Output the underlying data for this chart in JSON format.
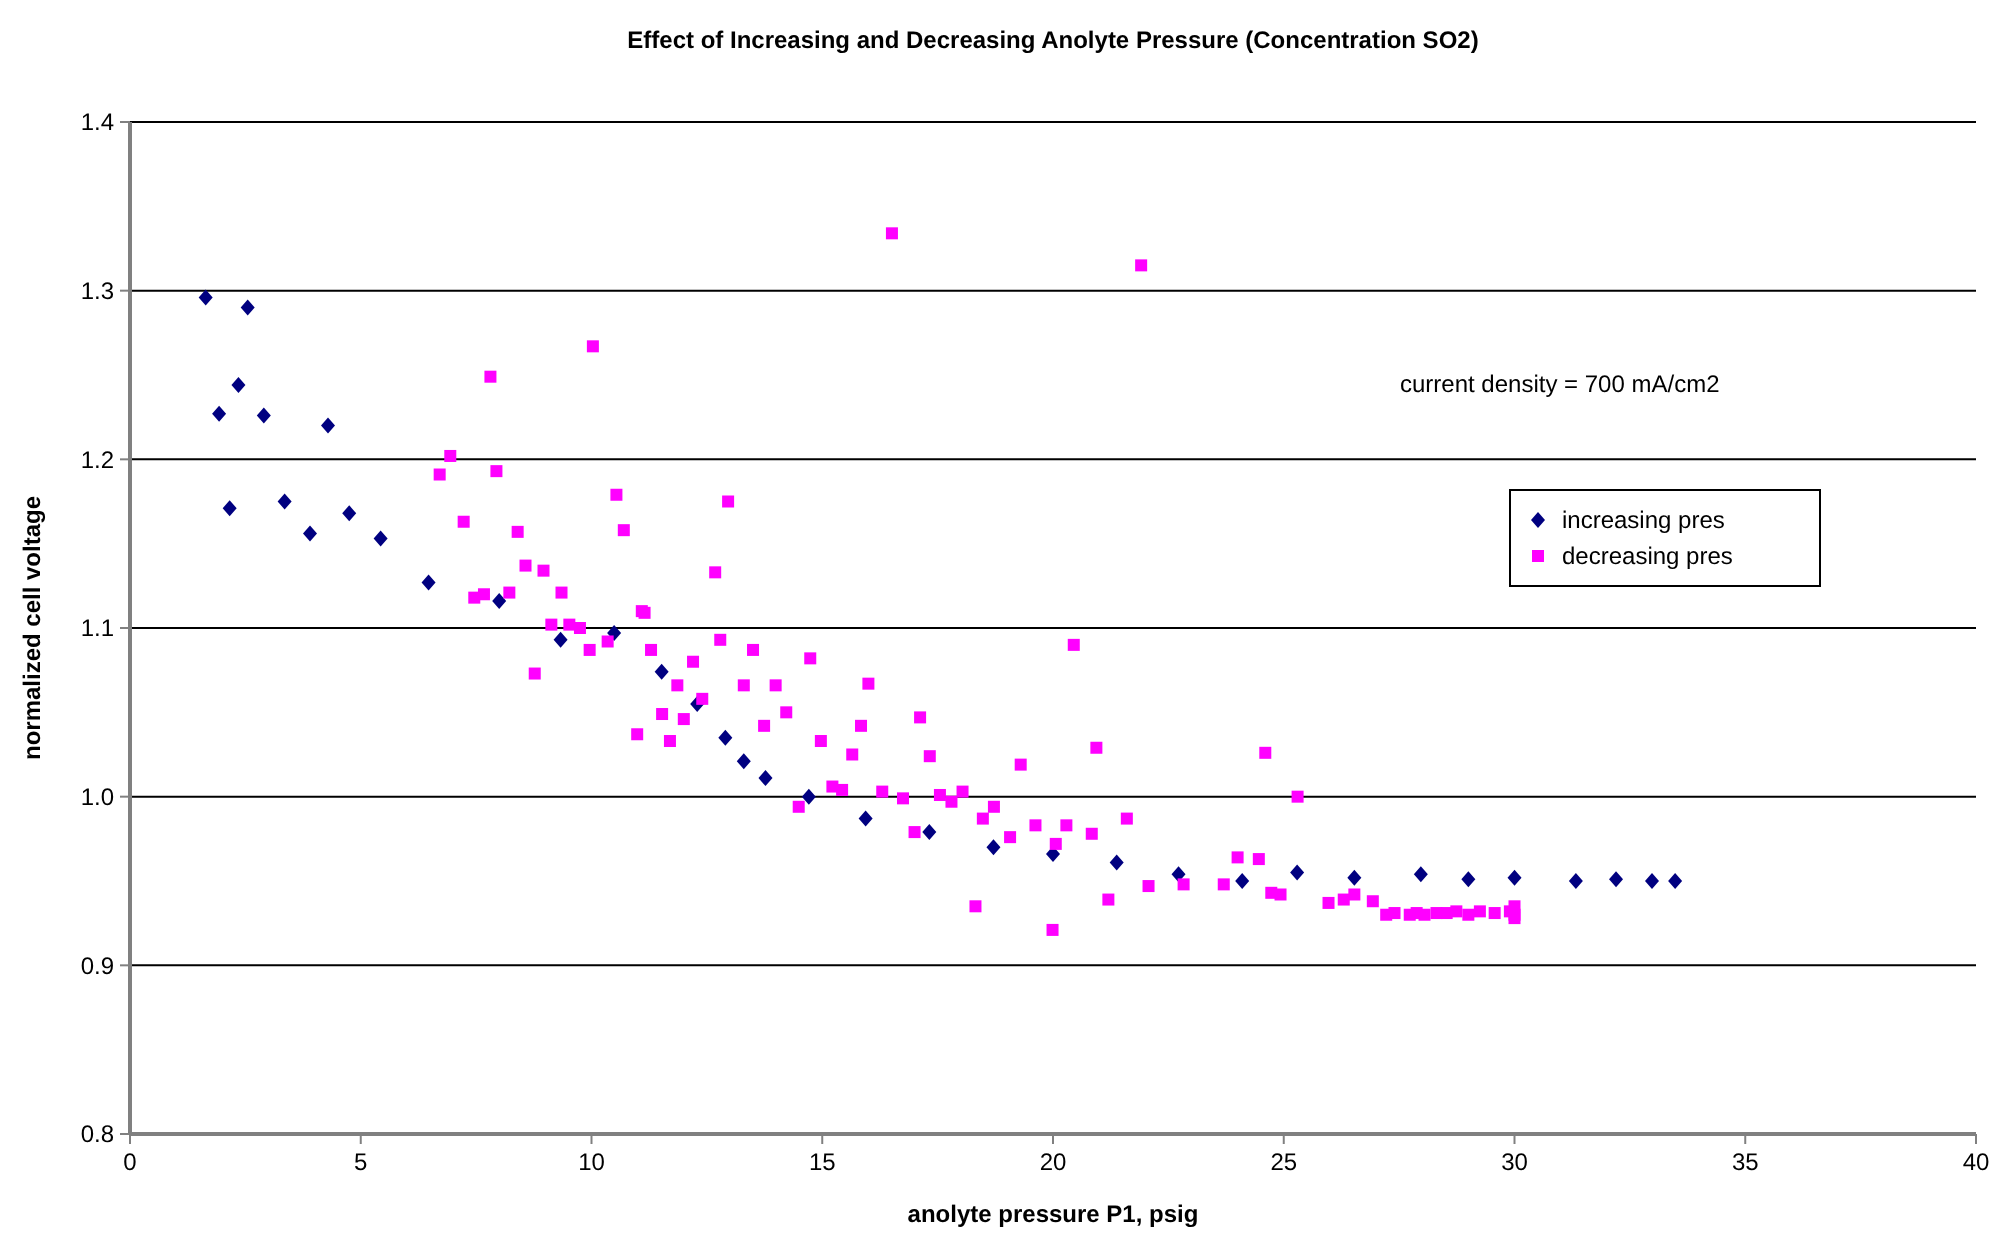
{
  "chart_data": {
    "type": "scatter",
    "title": "Effect of Increasing and Decreasing Anolyte Pressure (Concentration SO2)",
    "xlabel": "anolyte pressure P1, psig",
    "ylabel": "normalized cell voltage",
    "annotations": [
      "current density = 700 mA/cm2"
    ],
    "xlim": [
      0,
      40
    ],
    "xticks": [
      0,
      5,
      10,
      15,
      20,
      25,
      30,
      35,
      40
    ],
    "ylim": [
      0.8,
      1.4
    ],
    "yticks": [
      {
        "value": 0.8,
        "label": "0.8"
      },
      {
        "value": 0.9,
        "label": "0.9"
      },
      {
        "value": 1.0,
        "label": "1.0"
      },
      {
        "value": 1.1,
        "label": "1.1"
      },
      {
        "value": 1.2,
        "label": "1.2"
      },
      {
        "value": 1.3,
        "label": "1.3"
      },
      {
        "value": 1.4,
        "label": "1.4"
      }
    ],
    "grid": "y",
    "legend": "right",
    "series": [
      {
        "name": "increasing pres",
        "color": "#000080",
        "marker": "diamond",
        "x": [
          1.64,
          1.93,
          2.16,
          2.35,
          2.55,
          2.9,
          3.35,
          3.9,
          4.29,
          4.75,
          5.43,
          6.47,
          8.0,
          9.33,
          10.49,
          11.52,
          12.29,
          12.9,
          13.3,
          13.77,
          14.71,
          15.94,
          17.32,
          18.71,
          20.0,
          21.38,
          22.72,
          24.1,
          25.29,
          26.53,
          27.97,
          29.0,
          30.0,
          31.33,
          32.2,
          32.98,
          33.48
        ],
        "values": [
          1.296,
          1.227,
          1.171,
          1.244,
          1.29,
          1.226,
          1.175,
          1.156,
          1.22,
          1.168,
          1.153,
          1.127,
          1.116,
          1.093,
          1.097,
          1.074,
          1.055,
          1.035,
          1.021,
          1.011,
          1.0,
          0.987,
          0.979,
          0.97,
          0.966,
          0.961,
          0.954,
          0.95,
          0.955,
          0.952,
          0.954,
          0.951,
          0.952,
          0.95,
          0.951,
          0.95,
          0.95
        ]
      },
      {
        "name": "decreasing pres",
        "color": "#ff00ff",
        "marker": "square",
        "x": [
          6.71,
          6.94,
          7.23,
          7.46,
          7.67,
          7.81,
          7.94,
          8.22,
          8.4,
          8.57,
          8.77,
          8.96,
          9.13,
          9.35,
          9.52,
          9.75,
          9.96,
          10.03,
          10.35,
          10.54,
          10.7,
          10.99,
          11.09,
          11.15,
          11.29,
          11.53,
          11.7,
          11.86,
          12.0,
          12.2,
          12.4,
          12.68,
          12.79,
          12.96,
          13.3,
          13.5,
          13.74,
          13.99,
          14.22,
          14.49,
          14.74,
          14.97,
          15.22,
          15.43,
          15.65,
          15.84,
          16.0,
          16.3,
          16.51,
          16.75,
          17.0,
          17.12,
          17.33,
          17.55,
          17.8,
          18.04,
          18.32,
          18.48,
          18.72,
          19.07,
          19.3,
          19.62,
          19.99,
          20.06,
          20.29,
          20.45,
          20.84,
          20.94,
          21.2,
          21.6,
          21.91,
          22.07,
          22.83,
          23.7,
          24.0,
          24.46,
          24.6,
          24.73,
          24.93,
          25.3,
          25.97,
          26.3,
          26.53,
          26.93,
          27.22,
          27.4,
          27.73,
          27.88,
          28.05,
          28.31,
          28.53,
          28.74,
          29.0,
          29.25,
          29.57,
          29.9,
          30.0,
          30.0,
          30.0
        ],
        "values": [
          1.191,
          1.202,
          1.163,
          1.118,
          1.12,
          1.249,
          1.193,
          1.121,
          1.157,
          1.137,
          1.073,
          1.134,
          1.102,
          1.121,
          1.102,
          1.1,
          1.087,
          1.267,
          1.092,
          1.179,
          1.158,
          1.037,
          1.11,
          1.109,
          1.087,
          1.049,
          1.033,
          1.066,
          1.046,
          1.08,
          1.058,
          1.133,
          1.093,
          1.175,
          1.066,
          1.087,
          1.042,
          1.066,
          1.05,
          0.994,
          1.082,
          1.033,
          1.006,
          1.004,
          1.025,
          1.042,
          1.067,
          1.003,
          1.334,
          0.999,
          0.979,
          1.047,
          1.024,
          1.001,
          0.997,
          1.003,
          0.935,
          0.987,
          0.994,
          0.976,
          1.019,
          0.983,
          0.921,
          0.972,
          0.983,
          1.09,
          0.978,
          1.029,
          0.939,
          0.987,
          1.315,
          0.947,
          0.948,
          0.948,
          0.964,
          0.963,
          1.026,
          0.943,
          0.942,
          1.0,
          0.937,
          0.939,
          0.942,
          0.938,
          0.93,
          0.931,
          0.93,
          0.931,
          0.93,
          0.931,
          0.931,
          0.932,
          0.93,
          0.932,
          0.931,
          0.932,
          0.935,
          0.93,
          0.928
        ]
      }
    ]
  }
}
